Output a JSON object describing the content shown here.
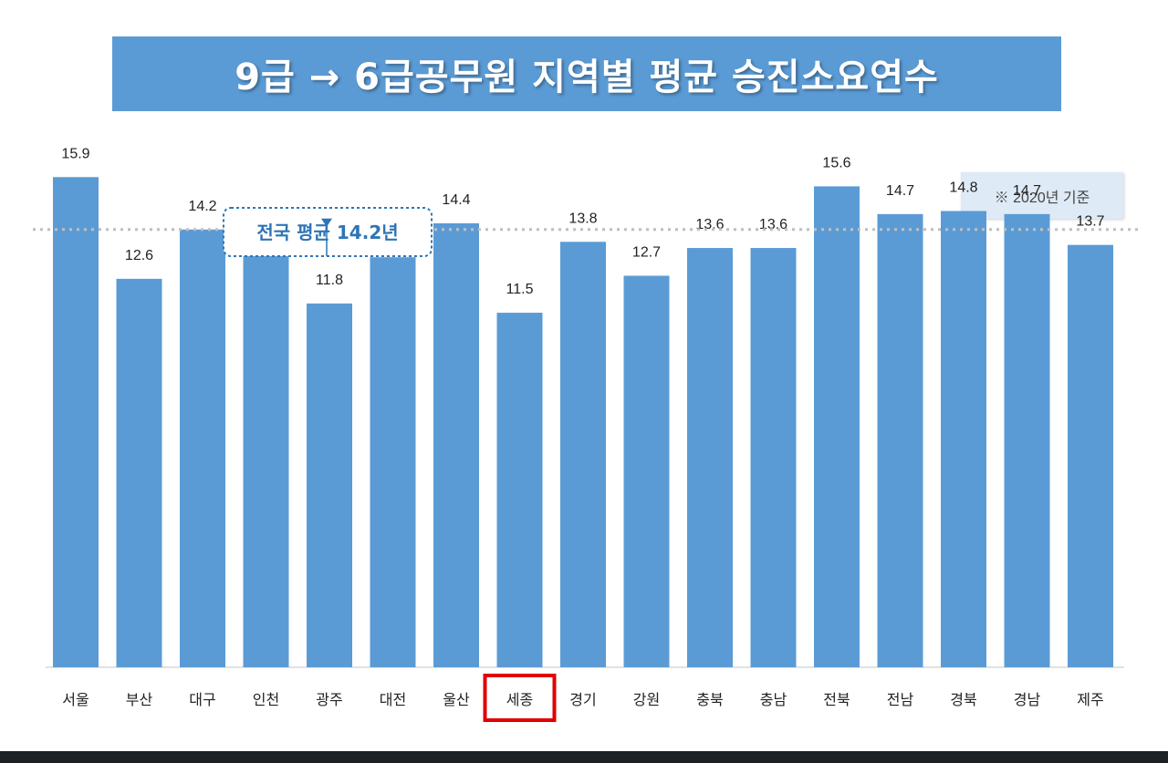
{
  "title": "9급 → 6급공무원 지역별 평균 승진소요연수",
  "basis_note": "※ 2020년 기준",
  "colors": {
    "bar": "#5b9bd5",
    "banner": "#5b9bd5",
    "highlight": "#e00000",
    "average_line": "#bfbfbf",
    "callout": "#2e75b6"
  },
  "chart_data": {
    "type": "bar",
    "title": "9급 → 6급공무원 지역별 평균 승진소요연수",
    "categories": [
      "서울",
      "부산",
      "대구",
      "인천",
      "광주",
      "대전",
      "울산",
      "세종",
      "경기",
      "강원",
      "충북",
      "충남",
      "전북",
      "전남",
      "경북",
      "경남",
      "제주"
    ],
    "values": [
      15.9,
      12.6,
      14.2,
      13.4,
      11.8,
      13.3,
      14.4,
      11.5,
      13.8,
      12.7,
      13.6,
      13.6,
      15.6,
      14.7,
      14.8,
      14.7,
      13.7
    ],
    "value_labels": [
      "15.9",
      "12.6",
      "14.2",
      "13.4",
      "11.8",
      "13.3",
      "14.4",
      "11.5",
      "13.8",
      "12.7",
      "13.6",
      "13.6",
      "15.6",
      "14.7",
      "14.8",
      "14.7",
      "13.7"
    ],
    "highlighted_category": "세종",
    "reference_line": {
      "value": 14.2,
      "label": "전국 평균 14.2년"
    },
    "ylim": [
      0,
      17.8
    ],
    "xlabel": "",
    "ylabel": "",
    "grid": false,
    "legend": "none"
  }
}
